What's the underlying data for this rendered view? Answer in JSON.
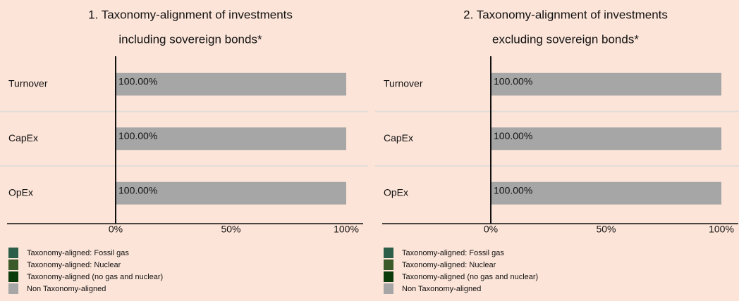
{
  "chart_data": [
    {
      "type": "bar",
      "orientation": "horizontal",
      "stacked": true,
      "title": [
        "1. Taxonomy-alignment of investments",
        "including sovereign bonds*"
      ],
      "categories": [
        "Turnover",
        "CapEx",
        "OpEx"
      ],
      "series": [
        {
          "name": "Taxonomy-aligned: Fossil gas",
          "color": "#2d5e48",
          "values": [
            0,
            0,
            0
          ]
        },
        {
          "name": "Taxonomy-aligned: Nuclear",
          "color": "#3b5a29",
          "values": [
            0,
            0,
            0
          ]
        },
        {
          "name": "Taxonomy-aligned (no gas and nuclear)",
          "color": "#0b3a0b",
          "values": [
            0,
            0,
            0
          ]
        },
        {
          "name": "Non Taxonomy-aligned",
          "color": "#a6a6a6",
          "values": [
            100,
            100,
            100
          ],
          "value_labels": [
            "100.00%",
            "100.00%",
            "100.00%"
          ]
        }
      ],
      "xlim": [
        0,
        100
      ],
      "xticks": [
        {
          "value": 0,
          "label": "0%"
        },
        {
          "value": 50,
          "label": "50%"
        },
        {
          "value": 100,
          "label": "100%"
        }
      ]
    },
    {
      "type": "bar",
      "orientation": "horizontal",
      "stacked": true,
      "title": [
        "2. Taxonomy-alignment of investments",
        "excluding sovereign bonds*"
      ],
      "categories": [
        "Turnover",
        "CapEx",
        "OpEx"
      ],
      "series": [
        {
          "name": "Taxonomy-aligned: Fossil gas",
          "color": "#2d5e48",
          "values": [
            0,
            0,
            0
          ]
        },
        {
          "name": "Taxonomy-aligned: Nuclear",
          "color": "#3b5a29",
          "values": [
            0,
            0,
            0
          ]
        },
        {
          "name": "Taxonomy-aligned (no gas and nuclear)",
          "color": "#0b3a0b",
          "values": [
            0,
            0,
            0
          ]
        },
        {
          "name": "Non Taxonomy-aligned",
          "color": "#a6a6a6",
          "values": [
            100,
            100,
            100
          ],
          "value_labels": [
            "100.00%",
            "100.00%",
            "100.00%"
          ]
        }
      ],
      "xlim": [
        0,
        100
      ],
      "xticks": [
        {
          "value": 0,
          "label": "0%"
        },
        {
          "value": 50,
          "label": "50%"
        },
        {
          "value": 100,
          "label": "100%"
        }
      ]
    }
  ]
}
